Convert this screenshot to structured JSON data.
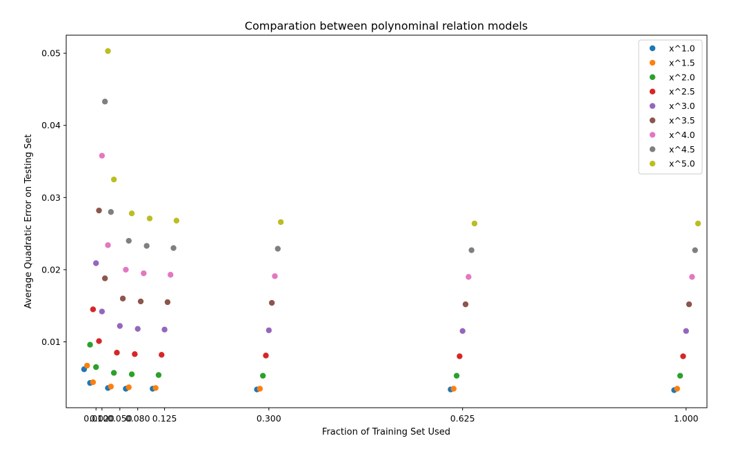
{
  "chart_data": {
    "type": "scatter",
    "title": "Comparation between polynominal relation models",
    "xlabel": "Fraction of Training Set Used",
    "ylabel": "Average Quadratic Error on Testing Set",
    "xlim": [
      -0.04,
      1.035
    ],
    "ylim": [
      0.00087,
      0.0525
    ],
    "grid": false,
    "legend_position": "top-right",
    "x_ticks": [
      {
        "value": 0.01,
        "label": "0.010"
      },
      {
        "value": 0.02,
        "label": "0.020"
      },
      {
        "value": 0.05,
        "label": "0.050"
      },
      {
        "value": 0.08,
        "label": "0.080"
      },
      {
        "value": 0.125,
        "label": "0.125"
      },
      {
        "value": 0.3,
        "label": "0.300"
      },
      {
        "value": 0.625,
        "label": "0.625"
      },
      {
        "value": 1.0,
        "label": "1.000"
      }
    ],
    "y_ticks": [
      {
        "value": 0.01,
        "label": "0.01"
      },
      {
        "value": 0.02,
        "label": "0.02"
      },
      {
        "value": 0.03,
        "label": "0.03"
      },
      {
        "value": 0.04,
        "label": "0.04"
      },
      {
        "value": 0.05,
        "label": "0.05"
      }
    ],
    "x_offset_step": 0.005,
    "series": [
      {
        "name": "x^1.0",
        "color": "#1f77b4",
        "x": [
          0.01,
          0.02,
          0.05,
          0.08,
          0.125,
          0.3,
          0.625,
          1.0
        ],
        "y": [
          0.0062,
          0.0043,
          0.0036,
          0.0035,
          0.0035,
          0.0034,
          0.0034,
          0.0033
        ]
      },
      {
        "name": "x^1.5",
        "color": "#ff7f0e",
        "x": [
          0.01,
          0.02,
          0.05,
          0.08,
          0.125,
          0.3,
          0.625,
          1.0
        ],
        "y": [
          0.0067,
          0.0044,
          0.0038,
          0.0037,
          0.0036,
          0.0035,
          0.0035,
          0.0035
        ]
      },
      {
        "name": "x^2.0",
        "color": "#2ca02c",
        "x": [
          0.01,
          0.02,
          0.05,
          0.08,
          0.125,
          0.3,
          0.625,
          1.0
        ],
        "y": [
          0.0096,
          0.0065,
          0.0057,
          0.0055,
          0.0054,
          0.0053,
          0.0053,
          0.0053
        ]
      },
      {
        "name": "x^2.5",
        "color": "#d62728",
        "x": [
          0.01,
          0.02,
          0.05,
          0.08,
          0.125,
          0.3,
          0.625,
          1.0
        ],
        "y": [
          0.0145,
          0.0101,
          0.0085,
          0.0083,
          0.0082,
          0.0081,
          0.008,
          0.008
        ]
      },
      {
        "name": "x^3.0",
        "color": "#9467bd",
        "x": [
          0.01,
          0.02,
          0.05,
          0.08,
          0.125,
          0.3,
          0.625,
          1.0
        ],
        "y": [
          0.0209,
          0.0142,
          0.0122,
          0.0118,
          0.0117,
          0.0116,
          0.0115,
          0.0115
        ]
      },
      {
        "name": "x^3.5",
        "color": "#8c564b",
        "x": [
          0.01,
          0.02,
          0.05,
          0.08,
          0.125,
          0.3,
          0.625,
          1.0
        ],
        "y": [
          0.0282,
          0.0188,
          0.016,
          0.0156,
          0.0155,
          0.0154,
          0.0152,
          0.0152
        ]
      },
      {
        "name": "x^4.0",
        "color": "#e377c2",
        "x": [
          0.01,
          0.02,
          0.05,
          0.08,
          0.125,
          0.3,
          0.625,
          1.0
        ],
        "y": [
          0.0358,
          0.0234,
          0.02,
          0.0195,
          0.0193,
          0.0191,
          0.019,
          0.019
        ]
      },
      {
        "name": "x^4.5",
        "color": "#7f7f7f",
        "x": [
          0.01,
          0.02,
          0.05,
          0.08,
          0.125,
          0.3,
          0.625,
          1.0
        ],
        "y": [
          0.0433,
          0.028,
          0.024,
          0.0233,
          0.023,
          0.0229,
          0.0227,
          0.0227
        ]
      },
      {
        "name": "x^5.0",
        "color": "#bcbd22",
        "x": [
          0.01,
          0.02,
          0.05,
          0.08,
          0.125,
          0.3,
          0.625,
          1.0
        ],
        "y": [
          0.0503,
          0.0325,
          0.0278,
          0.0271,
          0.0268,
          0.0266,
          0.0264,
          0.0264
        ]
      }
    ]
  }
}
